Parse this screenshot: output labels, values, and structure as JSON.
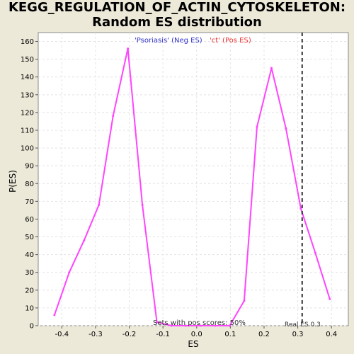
{
  "chart_data": {
    "type": "line",
    "title_lines": [
      "KEGG_REGULATION_OF_ACTIN_CYTOSKELETON:",
      "Random ES distribution"
    ],
    "xlabel": "ES",
    "ylabel": "P(ES)",
    "xlim": [
      -0.47,
      0.45
    ],
    "ylim": [
      0,
      165
    ],
    "xticks": [
      -0.4,
      -0.3,
      -0.2,
      -0.1,
      0.0,
      0.1,
      0.2,
      0.3,
      0.4
    ],
    "xtick_labels": [
      "-0.4",
      "-0.3",
      "-0.2",
      "-0.1",
      "0.0",
      "0.1",
      "0.2",
      "0.3",
      "0.4"
    ],
    "yticks": [
      0,
      10,
      20,
      30,
      40,
      50,
      60,
      70,
      80,
      90,
      100,
      110,
      120,
      130,
      140,
      150,
      160
    ],
    "ytick_labels": [
      "0",
      "10",
      "20",
      "30",
      "40",
      "50",
      "60",
      "70",
      "80",
      "90",
      "100",
      "110",
      "120",
      "130",
      "140",
      "150",
      "160"
    ],
    "grid": true,
    "series_color": "#ff44ff",
    "series": [
      {
        "points": [
          [
            -0.422,
            6
          ],
          [
            -0.378,
            30
          ],
          [
            -0.334,
            48
          ],
          [
            -0.29,
            68
          ],
          [
            -0.248,
            118
          ],
          [
            -0.204,
            156
          ],
          [
            -0.161,
            68
          ],
          [
            -0.118,
            2
          ],
          [
            -0.075,
            0
          ],
          [
            -0.032,
            0
          ],
          [
            0.012,
            0
          ],
          [
            0.055,
            0
          ],
          [
            0.098,
            0
          ],
          [
            0.141,
            14
          ],
          [
            0.179,
            112
          ],
          [
            0.222,
            145
          ],
          [
            0.265,
            111
          ],
          [
            0.309,
            66
          ],
          [
            0.352,
            41
          ],
          [
            0.395,
            15
          ]
        ]
      }
    ],
    "legend": [
      {
        "label": "'Psoriasis' (Neg ES)",
        "color": "#3333cc"
      },
      {
        "label": "'ct' (Pos ES)",
        "color": "#ee3333"
      }
    ],
    "annotations": {
      "pos_scores": "Sets with pos scores: 50%",
      "real_es_label": "Real ES 0.3",
      "real_es_value": 0.313
    }
  }
}
